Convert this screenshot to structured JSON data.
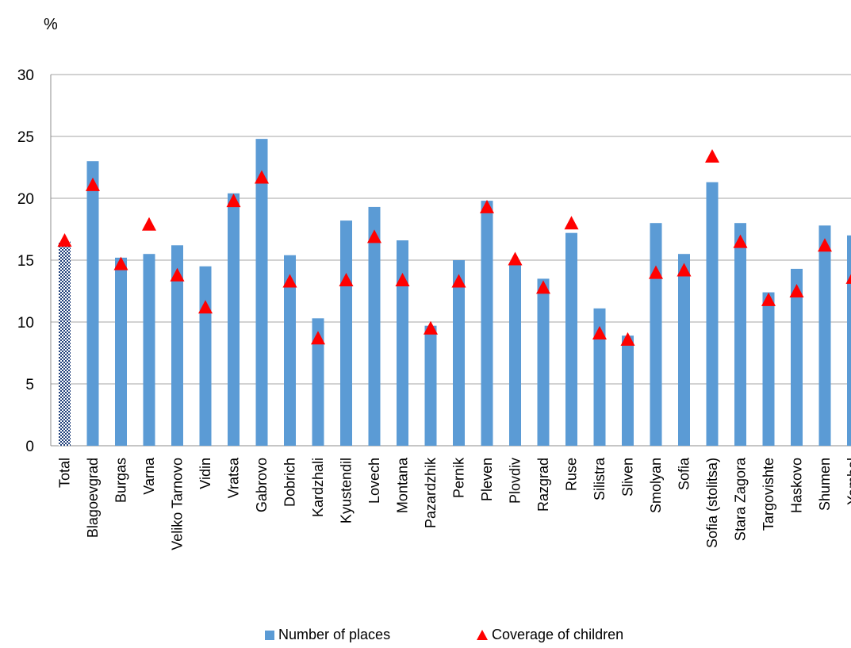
{
  "chart_data": {
    "type": "bar",
    "y_unit_label": "%",
    "ylim": [
      0,
      30
    ],
    "y_ticks": [
      0,
      5,
      10,
      15,
      20,
      25,
      30
    ],
    "grid": true,
    "legend_position": "bottom",
    "categories": [
      "Total",
      "Blagoevgrad",
      "Burgas",
      "Varna",
      "Veliko Tarnovo",
      "Vidin",
      "Vratsa",
      "Gabrovo",
      "Dobrich",
      "Kardzhali",
      "Kyustendil",
      "Lovech",
      "Montana",
      "Pazardzhik",
      "Pernik",
      "Pleven",
      "Plovdiv",
      "Razgrad",
      "Ruse",
      "Silistra",
      "Sliven",
      "Smolyan",
      "Sofia",
      "Sofia (stolitsa)",
      "Stara Zagora",
      "Targovishte",
      "Haskovo",
      "Shumen",
      "Yambol"
    ],
    "series": [
      {
        "name": "Number of places",
        "type": "bar",
        "color": "#5b9bd5",
        "total_pattern_color": "#1f3f7a",
        "values": [
          16.5,
          23.0,
          15.2,
          15.5,
          16.2,
          14.5,
          20.4,
          24.8,
          15.4,
          10.3,
          18.2,
          19.3,
          16.6,
          9.7,
          15.0,
          19.8,
          14.8,
          13.5,
          17.2,
          11.1,
          8.9,
          18.0,
          15.5,
          21.3,
          18.0,
          12.4,
          14.3,
          17.8,
          17.0
        ]
      },
      {
        "name": "Coverage of children",
        "type": "scatter",
        "marker": "triangle",
        "color": "#ff0000",
        "values": [
          16.6,
          21.1,
          14.7,
          17.9,
          13.8,
          11.2,
          19.8,
          21.7,
          13.3,
          8.7,
          13.4,
          16.9,
          13.4,
          9.5,
          13.3,
          19.3,
          15.1,
          12.8,
          18.0,
          9.1,
          8.6,
          14.0,
          14.2,
          23.4,
          16.5,
          11.8,
          12.5,
          16.2,
          13.6
        ]
      }
    ]
  }
}
